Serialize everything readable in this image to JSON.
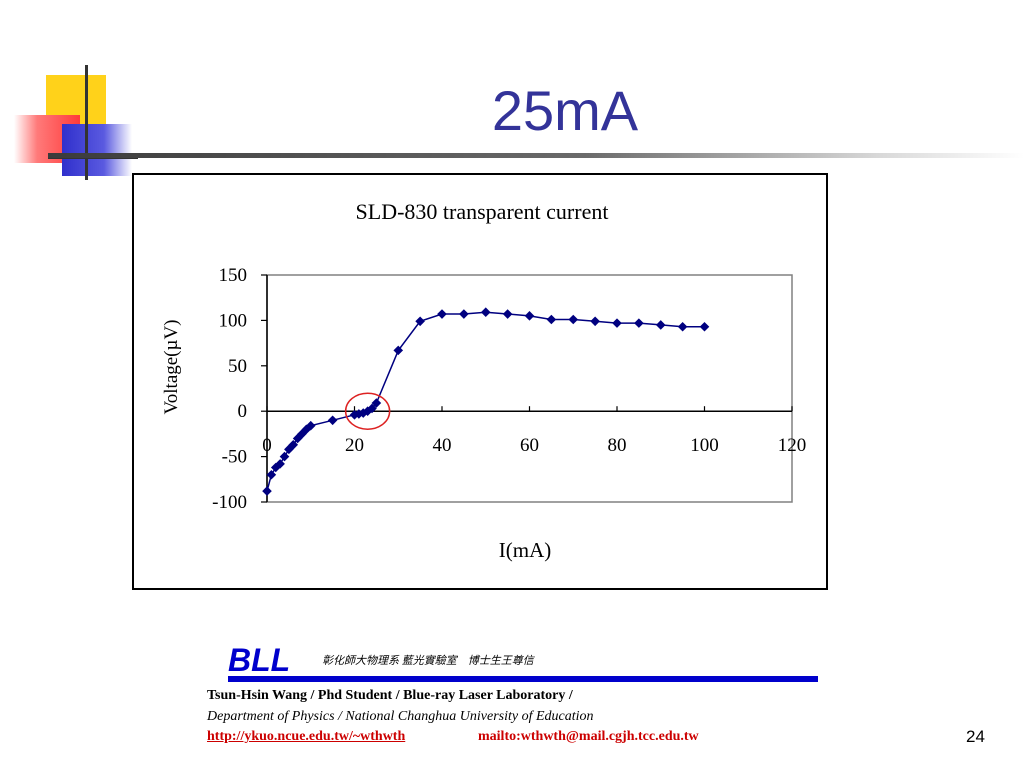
{
  "slide": {
    "title": "25mA",
    "page_number": "24"
  },
  "chart_data": {
    "type": "scatter",
    "title": "SLD-830 transparent current",
    "xlabel": "I(mA)",
    "ylabel": "Voltage(µV)",
    "xlim": [
      0,
      120
    ],
    "ylim": [
      -100,
      150
    ],
    "x_ticks": [
      "0",
      "20",
      "40",
      "60",
      "80",
      "100",
      "120"
    ],
    "y_ticks": [
      "150",
      "100",
      "50",
      "0",
      "-50",
      "-100"
    ],
    "grid": false,
    "legend": "none",
    "marker": "diamond",
    "series_color": "#000080",
    "annotation_color": "#dd2222",
    "annotation_center": [
      23,
      0
    ],
    "x": [
      0,
      1,
      2,
      3,
      4,
      5,
      6,
      7,
      8,
      9,
      10,
      15,
      20,
      21,
      22,
      23,
      24,
      25,
      30,
      35,
      40,
      45,
      50,
      55,
      60,
      65,
      70,
      75,
      80,
      85,
      90,
      95,
      100
    ],
    "y": [
      -88,
      -70,
      -62,
      -58,
      -50,
      -42,
      -37,
      -30,
      -25,
      -20,
      -16,
      -10,
      -4,
      -3,
      -2,
      0,
      3,
      9,
      67,
      99,
      107,
      107,
      109,
      107,
      105,
      101,
      101,
      99,
      97,
      97,
      95,
      93,
      93
    ]
  },
  "footer": {
    "logo": "BLL",
    "chinese": "彰化師大物理系 藍光實驗室　博士生王尊信",
    "line1": "Tsun-Hsin Wang / Phd Student / Blue-ray Laser Laboratory /",
    "line2": "Department of Physics / National Changhua University of Education",
    "link": "http://ykuo.ncue.edu.tw/~wthwth",
    "mail": "mailto:wthwth@mail.cgjh.tcc.edu.tw"
  }
}
